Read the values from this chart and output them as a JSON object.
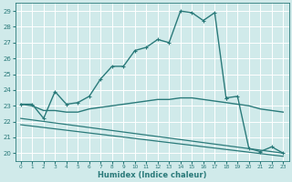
{
  "xlabel": "Humidex (Indice chaleur)",
  "xlim": [
    -0.5,
    23.5
  ],
  "ylim": [
    19.5,
    29.5
  ],
  "yticks": [
    20,
    21,
    22,
    23,
    24,
    25,
    26,
    27,
    28,
    29
  ],
  "xticks": [
    0,
    1,
    2,
    3,
    4,
    5,
    6,
    7,
    8,
    9,
    10,
    11,
    12,
    13,
    14,
    15,
    16,
    17,
    18,
    19,
    20,
    21,
    22,
    23
  ],
  "background_color": "#d0eaea",
  "line_color": "#2a7a7a",
  "grid_color": "#ffffff",
  "lines": [
    {
      "x": [
        0,
        1,
        2,
        3,
        4,
        5,
        6,
        7,
        8,
        9,
        10,
        11,
        12,
        13,
        14,
        15,
        16,
        17,
        18
      ],
      "y": [
        23.1,
        23.1,
        22.2,
        23.9,
        23.1,
        23.2,
        23.6,
        24.7,
        25.5,
        25.5,
        26.5,
        26.7,
        27.2,
        27.0,
        29.0,
        28.9,
        28.4,
        28.9,
        23.5
      ],
      "marker": true,
      "lw": 1.0
    },
    {
      "x": [
        0,
        1,
        2,
        3,
        4,
        5,
        6,
        7,
        8,
        9,
        10,
        11,
        12,
        13,
        14,
        15,
        16,
        17,
        18,
        19,
        20,
        21,
        22,
        23
      ],
      "y": [
        23.1,
        23.0,
        22.7,
        22.7,
        22.6,
        22.6,
        22.8,
        22.9,
        23.0,
        23.1,
        23.2,
        23.3,
        23.4,
        23.4,
        23.5,
        23.5,
        23.4,
        23.3,
        23.2,
        23.1,
        23.0,
        22.8,
        22.7,
        22.6
      ],
      "marker": false,
      "lw": 1.0
    },
    {
      "x": [
        0,
        23
      ],
      "y": [
        22.2,
        20.0
      ],
      "marker": false,
      "lw": 0.9
    },
    {
      "x": [
        0,
        23
      ],
      "y": [
        21.8,
        19.8
      ],
      "marker": false,
      "lw": 0.9
    },
    {
      "x": [
        18,
        19,
        20,
        21,
        22,
        23
      ],
      "y": [
        23.5,
        23.6,
        20.3,
        20.1,
        20.4,
        20.0
      ],
      "marker": true,
      "lw": 1.0
    }
  ]
}
